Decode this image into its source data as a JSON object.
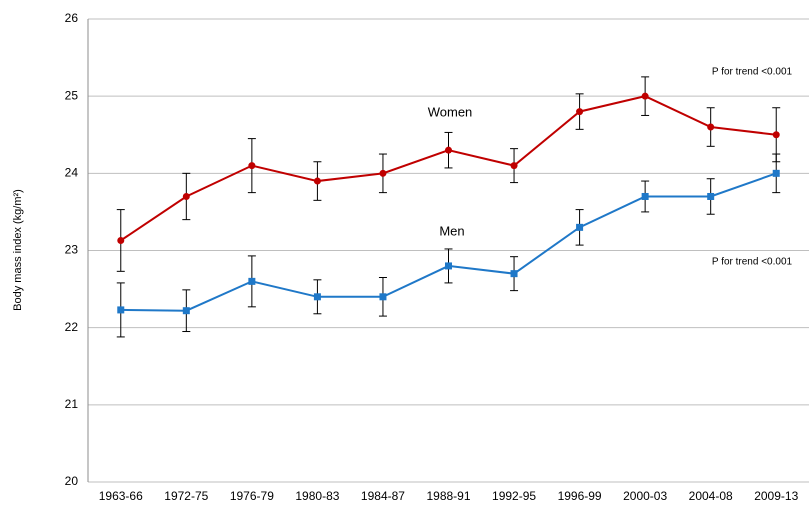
{
  "chart_data": {
    "type": "line",
    "y_label": "Body mass index (kg/m²)",
    "categories": [
      "1963-66",
      "1972-75",
      "1976-79",
      "1980-83",
      "1984-87",
      "1988-91",
      "1992-95",
      "1996-99",
      "2000-03",
      "2004-08",
      "2009-13"
    ],
    "series": [
      {
        "name": "Women",
        "color": "#c00000",
        "marker": "circle",
        "values": [
          23.13,
          23.7,
          24.1,
          23.9,
          24.0,
          24.3,
          24.1,
          24.8,
          25.0,
          24.6,
          24.5
        ],
        "errors": [
          0.4,
          0.3,
          0.35,
          0.25,
          0.25,
          0.23,
          0.22,
          0.23,
          0.25,
          0.25,
          0.35
        ]
      },
      {
        "name": "Men",
        "color": "#1f78c8",
        "marker": "square",
        "values": [
          22.23,
          22.22,
          22.6,
          22.4,
          22.4,
          22.8,
          22.7,
          23.3,
          23.7,
          23.7,
          24.0
        ],
        "errors": [
          0.35,
          0.27,
          0.33,
          0.22,
          0.25,
          0.22,
          0.22,
          0.23,
          0.2,
          0.23,
          0.25
        ]
      }
    ],
    "annotations": [
      "P for trend <0.001",
      "P for trend <0.001"
    ],
    "ylim": [
      20,
      26
    ],
    "yticks": [
      20,
      21,
      22,
      23,
      24,
      25,
      26
    ],
    "grid": true
  }
}
